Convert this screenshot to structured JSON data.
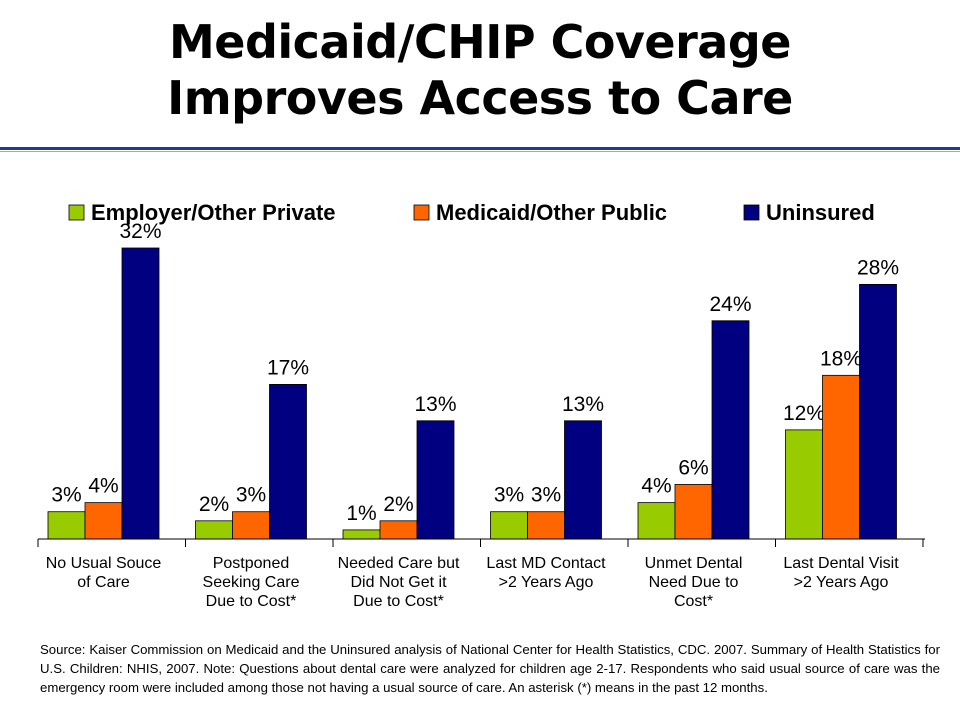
{
  "title": {
    "line1": "Medicaid/CHIP Coverage",
    "line2": "Improves Access to Care"
  },
  "chart_data": {
    "type": "bar",
    "categories": [
      [
        "No Usual Souce",
        "of Care"
      ],
      [
        "Postponed",
        "Seeking Care",
        "Due to Cost*"
      ],
      [
        "Needed Care but",
        "Did Not Get it",
        "Due to Cost*"
      ],
      [
        "Last MD Contact",
        ">2 Years Ago"
      ],
      [
        "Unmet Dental",
        "Need Due to",
        "Cost*"
      ],
      [
        "Last Dental Visit",
        ">2 Years Ago"
      ]
    ],
    "series": [
      {
        "name": "Employer/Other Private",
        "color": "#99cc00",
        "values": [
          3,
          2,
          1,
          3,
          4,
          12
        ]
      },
      {
        "name": "Medicaid/Other Public",
        "color": "#ff6600",
        "values": [
          4,
          3,
          2,
          3,
          6,
          18
        ]
      },
      {
        "name": "Uninsured",
        "color": "#000080",
        "values": [
          32,
          17,
          13,
          13,
          24,
          28
        ]
      }
    ],
    "value_suffix": "%",
    "ylim": [
      0,
      35
    ],
    "legend_position": "top",
    "grid": false
  },
  "footnote": "Source: Kaiser Commission on Medicaid and the Uninsured analysis of National Center for Health Statistics, CDC. 2007. Summary of Health Statistics for U.S. Children: NHIS, 2007. Note: Questions about dental care were analyzed for children age 2-17. Respondents who said usual source of care was the emergency room were included among those not having a usual source of care. An asterisk (*) means in the past 12 months."
}
